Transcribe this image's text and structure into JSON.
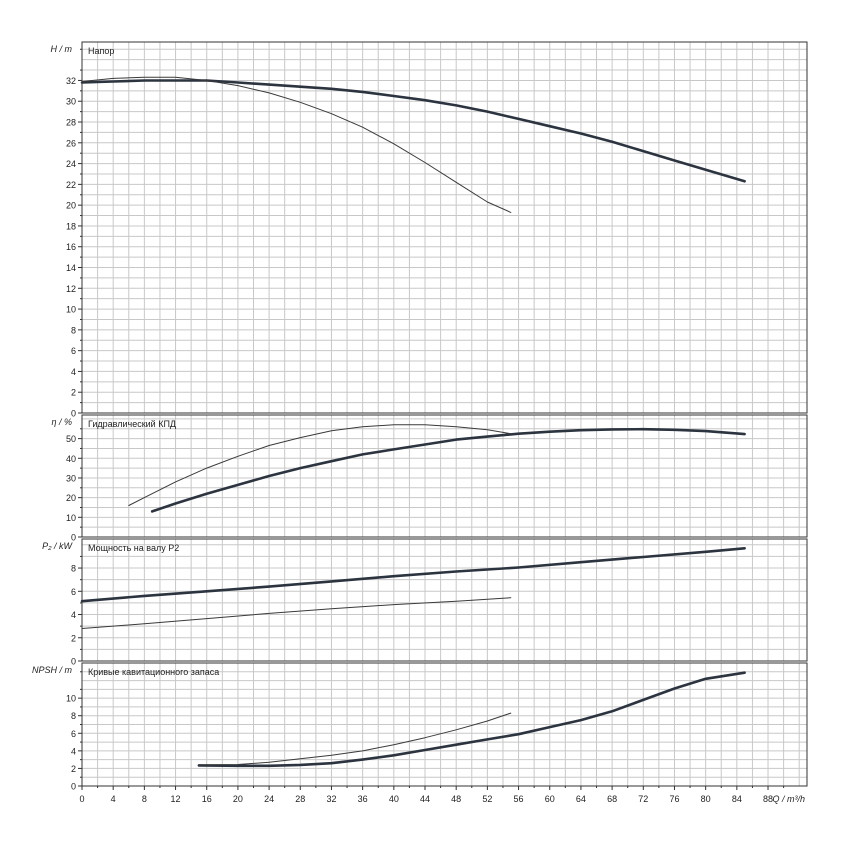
{
  "chart_data": [
    {
      "type": "line",
      "title": "Напор",
      "ylabel": "H / m",
      "ylim": [
        0,
        35.7
      ],
      "y_ticks": [
        0,
        2,
        4,
        6,
        8,
        10,
        12,
        14,
        16,
        18,
        20,
        22,
        24,
        26,
        28,
        30,
        32
      ],
      "series": [
        {
          "style": "thick",
          "x": [
            0,
            4,
            8,
            12,
            16,
            20,
            24,
            28,
            32,
            36,
            40,
            44,
            48,
            52,
            56,
            60,
            64,
            68,
            72,
            76,
            80,
            85
          ],
          "y": [
            31.8,
            31.9,
            32.0,
            32.0,
            32.0,
            31.8,
            31.6,
            31.4,
            31.2,
            30.9,
            30.5,
            30.1,
            29.6,
            29.0,
            28.3,
            27.6,
            26.9,
            26.1,
            25.2,
            24.3,
            23.4,
            22.3
          ]
        },
        {
          "style": "thin",
          "x": [
            0,
            4,
            8,
            12,
            16,
            20,
            24,
            28,
            32,
            36,
            40,
            44,
            48,
            52,
            55
          ],
          "y": [
            31.9,
            32.2,
            32.3,
            32.3,
            32.0,
            31.5,
            30.8,
            29.9,
            28.8,
            27.5,
            25.9,
            24.1,
            22.2,
            20.3,
            19.3
          ]
        }
      ]
    },
    {
      "type": "line",
      "title": "Гидравлический КПД",
      "ylabel": "η / %",
      "ylim": [
        0,
        62
      ],
      "y_ticks": [
        0,
        10,
        20,
        30,
        40,
        50
      ],
      "series": [
        {
          "style": "thick",
          "x": [
            9,
            12,
            16,
            20,
            24,
            28,
            32,
            36,
            40,
            44,
            48,
            52,
            56,
            60,
            64,
            68,
            72,
            76,
            80,
            85
          ],
          "y": [
            13,
            17,
            22,
            26.5,
            31,
            35,
            38.5,
            42,
            44.5,
            47,
            49.5,
            51,
            52.5,
            53.5,
            54.3,
            54.7,
            54.8,
            54.5,
            53.8,
            52.3
          ]
        },
        {
          "style": "thin",
          "x": [
            6,
            8,
            12,
            16,
            20,
            24,
            28,
            32,
            36,
            40,
            44,
            48,
            52,
            55
          ],
          "y": [
            16,
            20,
            28,
            35,
            41,
            46.5,
            50.5,
            54,
            56,
            57,
            57,
            56,
            54.5,
            52.5
          ]
        }
      ]
    },
    {
      "type": "line",
      "title": "Мощность на валу P2",
      "ylabel": "P₂ / kW",
      "ylim": [
        0,
        10.5
      ],
      "y_ticks": [
        0,
        2,
        4,
        6,
        8
      ],
      "series": [
        {
          "style": "thick",
          "x": [
            0,
            8,
            16,
            24,
            32,
            40,
            48,
            56,
            64,
            72,
            80,
            85
          ],
          "y": [
            5.15,
            5.6,
            6.0,
            6.4,
            6.85,
            7.3,
            7.7,
            8.05,
            8.5,
            8.95,
            9.4,
            9.7
          ]
        },
        {
          "style": "thin",
          "x": [
            0,
            8,
            16,
            24,
            32,
            40,
            48,
            55
          ],
          "y": [
            2.8,
            3.2,
            3.65,
            4.1,
            4.5,
            4.85,
            5.15,
            5.45
          ]
        }
      ]
    },
    {
      "type": "line",
      "title": "Кривые кавитационного запаса",
      "ylabel": "NPSH / m",
      "xlabel": "Q / m³/h",
      "xlim": [
        0,
        93
      ],
      "x_ticks": [
        0,
        4,
        8,
        12,
        16,
        20,
        24,
        28,
        32,
        36,
        40,
        44,
        48,
        52,
        56,
        60,
        64,
        68,
        72,
        76,
        80,
        84,
        88
      ],
      "ylim": [
        0,
        14
      ],
      "y_ticks": [
        0,
        2,
        4,
        6,
        8,
        10
      ],
      "series": [
        {
          "style": "thick",
          "x": [
            15,
            20,
            24,
            28,
            32,
            36,
            40,
            44,
            48,
            52,
            56,
            60,
            64,
            68,
            72,
            76,
            80,
            85
          ],
          "y": [
            2.35,
            2.3,
            2.3,
            2.4,
            2.6,
            3.0,
            3.5,
            4.1,
            4.7,
            5.3,
            5.9,
            6.7,
            7.5,
            8.5,
            9.8,
            11.1,
            12.2,
            12.9
          ]
        },
        {
          "style": "thin",
          "x": [
            15,
            20,
            24,
            28,
            32,
            36,
            40,
            44,
            48,
            52,
            55
          ],
          "y": [
            2.4,
            2.45,
            2.7,
            3.1,
            3.5,
            4.0,
            4.7,
            5.5,
            6.4,
            7.4,
            8.3
          ]
        }
      ]
    }
  ]
}
